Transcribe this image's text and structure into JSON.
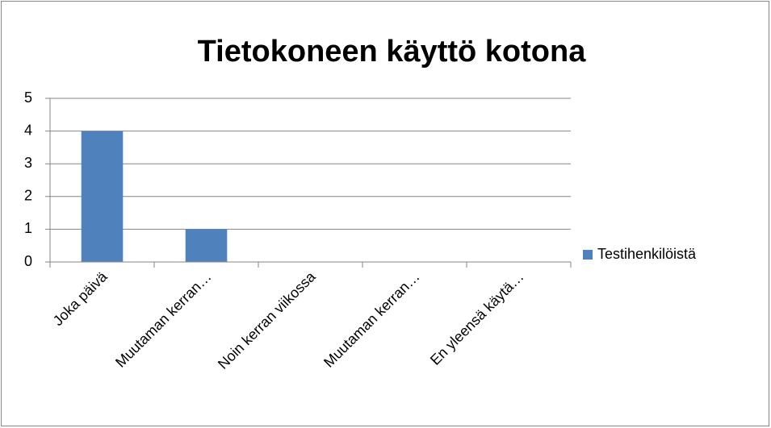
{
  "chart_data": {
    "type": "bar",
    "title": "Tietokoneen käyttö kotona",
    "categories": [
      "Joka päivä",
      "Muutaman kerran…",
      "Noin kerran viikossa",
      "Muutaman kerran…",
      "En yleensä käytä…"
    ],
    "series": [
      {
        "name": "Testihenkilöistä",
        "color": "#4f81bd",
        "values": [
          4,
          1,
          0,
          0,
          0
        ]
      }
    ],
    "ylim": [
      0,
      5
    ],
    "yticks": [
      0,
      1,
      2,
      3,
      4,
      5
    ],
    "grid": true,
    "legend": "right"
  }
}
